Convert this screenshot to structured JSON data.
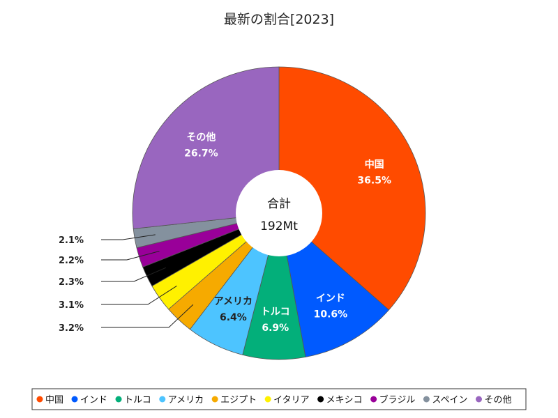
{
  "chart_data": {
    "type": "pie",
    "style": "donut",
    "title": "最新の割合[2023]",
    "center_label": "合計",
    "center_value": "192Mt",
    "legend_position": "bottom",
    "unit": "%",
    "slices": [
      {
        "label": "中国",
        "value": 36.5,
        "value_text": "36.5%",
        "color": "#ff4b00",
        "label_mode": "inside"
      },
      {
        "label": "インド",
        "value": 10.6,
        "value_text": "10.6%",
        "color": "#005aff",
        "label_mode": "inside"
      },
      {
        "label": "トルコ",
        "value": 6.9,
        "value_text": "6.9%",
        "color": "#03af7a",
        "label_mode": "inside"
      },
      {
        "label": "アメリカ",
        "value": 6.4,
        "value_text": "6.4%",
        "color": "#4dc4ff",
        "label_mode": "inside-dark"
      },
      {
        "label": "エジプト",
        "value": 3.2,
        "value_text": "3.2%",
        "color": "#f6aa00",
        "label_mode": "outside"
      },
      {
        "label": "イタリア",
        "value": 3.1,
        "value_text": "3.1%",
        "color": "#fff100",
        "label_mode": "outside"
      },
      {
        "label": "メキシコ",
        "value": 2.3,
        "value_text": "2.3%",
        "color": "#000000",
        "label_mode": "outside"
      },
      {
        "label": "ブラジル",
        "value": 2.2,
        "value_text": "2.2%",
        "color": "#990099",
        "label_mode": "outside"
      },
      {
        "label": "スペイン",
        "value": 2.1,
        "value_text": "2.1%",
        "color": "#84919e",
        "label_mode": "outside"
      },
      {
        "label": "その他",
        "value": 26.7,
        "value_text": "26.7%",
        "color": "#9966bf",
        "label_mode": "inside"
      }
    ]
  }
}
